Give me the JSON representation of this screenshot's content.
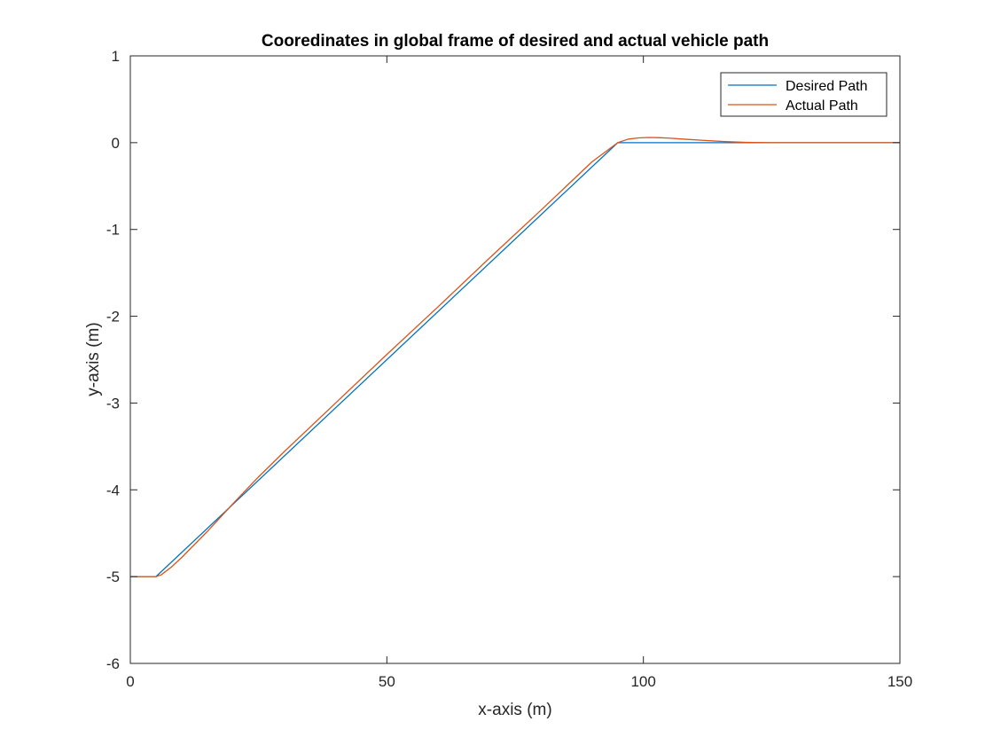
{
  "chart_data": {
    "type": "line",
    "title": "Cooredinates in global frame of desired and actual vehicle path",
    "xlabel": "x-axis (m)",
    "ylabel": "y-axis (m)",
    "xlim": [
      0,
      150
    ],
    "ylim": [
      -6,
      1
    ],
    "xticks": [
      0,
      50,
      100,
      150
    ],
    "yticks": [
      1,
      0,
      -1,
      -2,
      -3,
      -4,
      -5,
      -6
    ],
    "grid": false,
    "legend_position": "top-right",
    "series": [
      {
        "name": "Desired Path",
        "color": "#0072BD",
        "x": [
          0,
          5,
          95,
          150
        ],
        "y": [
          -5,
          -5,
          0,
          0
        ]
      },
      {
        "name": "Actual Path",
        "color": "#D95319",
        "x": [
          0,
          5,
          6,
          8,
          10,
          12,
          15,
          20,
          25,
          30,
          40,
          50,
          60,
          70,
          80,
          90,
          95,
          97,
          99,
          101,
          103,
          105,
          108,
          112,
          116,
          120,
          125,
          130,
          140,
          150
        ],
        "y": [
          -5,
          -5,
          -4.98,
          -4.89,
          -4.78,
          -4.66,
          -4.48,
          -4.16,
          -3.85,
          -3.56,
          -3.0,
          -2.44,
          -1.89,
          -1.33,
          -0.78,
          -0.22,
          0.0,
          0.04,
          0.055,
          0.06,
          0.058,
          0.052,
          0.04,
          0.025,
          0.012,
          0.004,
          0.0,
          0.0,
          0.0,
          0.0
        ]
      }
    ]
  }
}
